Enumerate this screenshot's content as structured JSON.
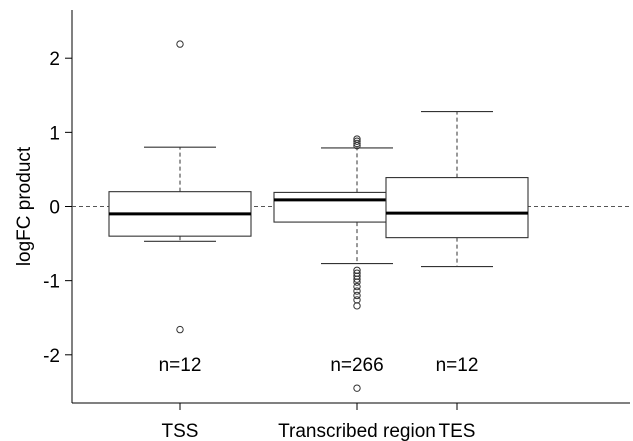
{
  "chart_data": {
    "type": "boxplot",
    "ylabel": "logFC product",
    "ylim": [
      -2.65,
      2.65
    ],
    "yticks": [
      -2,
      -1,
      0,
      1,
      2
    ],
    "ytick_labels": [
      "-2",
      "-1",
      "0",
      "1",
      "2"
    ],
    "reference_line": 0,
    "categories": [
      "TSS",
      "Transcribed region",
      "TES"
    ],
    "boxes": [
      {
        "category": "TSS",
        "n_label": "n=12",
        "whisker_low": -0.47,
        "q1": -0.4,
        "median": -0.1,
        "q3": 0.2,
        "whisker_high": 0.8,
        "outliers": [
          2.19,
          -1.66
        ]
      },
      {
        "category": "Transcribed region",
        "n_label": "n=266",
        "whisker_low": -0.77,
        "q1": -0.21,
        "median": 0.09,
        "q3": 0.19,
        "whisker_high": 0.79,
        "outliers": [
          0.91,
          0.88,
          0.85,
          0.82,
          -0.86,
          -0.9,
          -0.94,
          -0.98,
          -1.02,
          -1.08,
          -1.14,
          -1.2,
          -1.26,
          -1.34,
          -2.45
        ]
      },
      {
        "category": "TES",
        "n_label": "n=12",
        "whisker_low": -0.81,
        "q1": -0.42,
        "median": -0.09,
        "q3": 0.39,
        "whisker_high": 1.28,
        "outliers": []
      }
    ]
  }
}
